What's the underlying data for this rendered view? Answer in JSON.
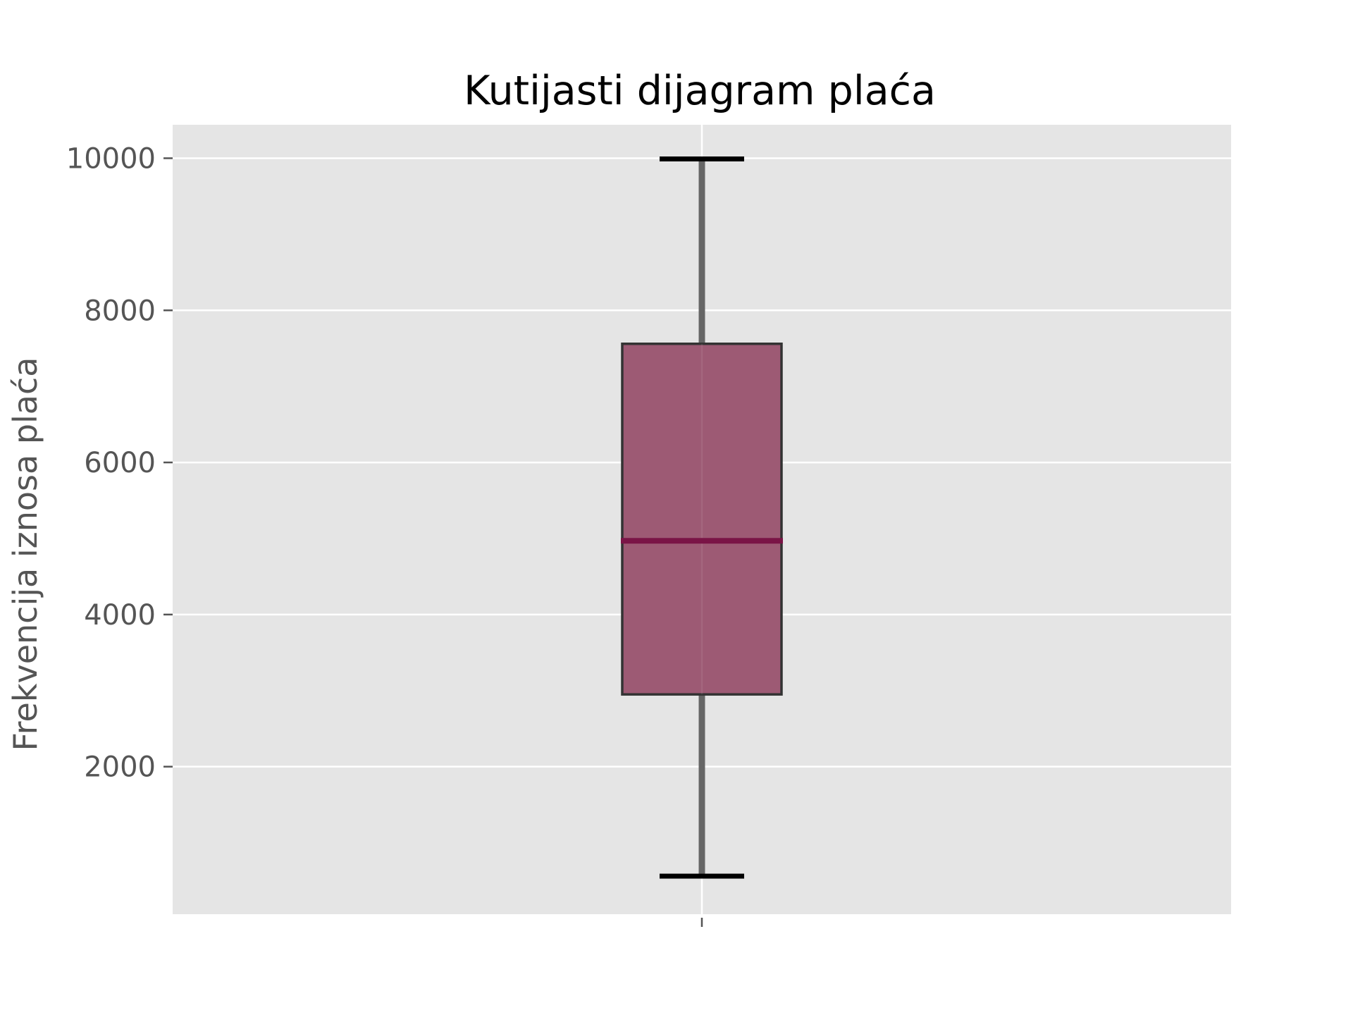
{
  "chart_data": {
    "type": "boxplot",
    "title": "Kutijasti dijagram plaća",
    "xlabel": "",
    "ylabel": "Frekvencija iznosa plaća",
    "ylim": [
      60,
      10440
    ],
    "y_ticks": [
      2000,
      4000,
      6000,
      8000,
      10000
    ],
    "x_tick_labels": [
      ""
    ],
    "grid": true,
    "series": [
      {
        "whisker_low": 560,
        "q1": 2950,
        "median": 4970,
        "q3": 7560,
        "whisker_high": 9990
      }
    ],
    "colors": {
      "panel_bg": "#e5e5e5",
      "grid": "#ffffff",
      "box_fill": "#9a5570",
      "box_edge": "#333333",
      "median": "#7a1446",
      "whisker": "#666666",
      "cap": "#000000",
      "tick_text": "#555555"
    }
  }
}
